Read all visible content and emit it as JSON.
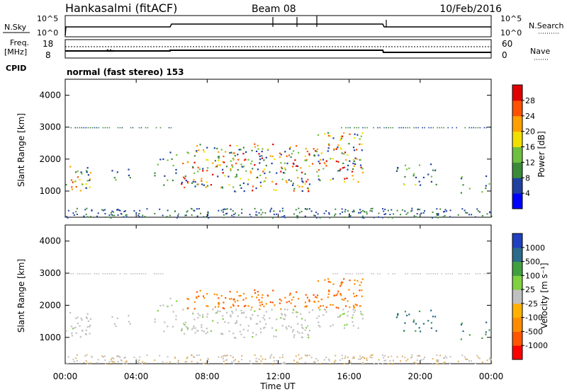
{
  "header": {
    "station": "Hankasalmi (fitACF)",
    "beam": "Beam 08",
    "date": "10/Feb/2016"
  },
  "noise_panel": {
    "left_label": "N.Sky",
    "right_label": "N.Search",
    "left_ticks": [
      "10^5",
      "10^0"
    ],
    "right_ticks": [
      "10^5",
      "10^0"
    ]
  },
  "freq_panel": {
    "left_label_line1": "Freq.",
    "left_label_line2": "[MHz]",
    "right_label": "Nave",
    "left_ticks": [
      "18",
      "8"
    ],
    "right_ticks": [
      "60",
      "0"
    ]
  },
  "cpid": {
    "label": "CPID",
    "text": "normal (fast stereo) 153"
  },
  "power_panel": {
    "ylabel": "Slant Range [km]",
    "yticks": [
      "4000",
      "3000",
      "2000",
      "1000"
    ],
    "colorbar_label": "Power [dB]",
    "colorbar_ticks": [
      "28",
      "24",
      "20",
      "16",
      "12",
      "8",
      "4"
    ],
    "colors": [
      "#0000ff",
      "#2040a0",
      "#3a8a3a",
      "#70c040",
      "#f0e000",
      "#ffa000",
      "#ff5000",
      "#e00000"
    ]
  },
  "velocity_panel": {
    "ylabel": "Slant Range [km]",
    "yticks": [
      "4000",
      "3000",
      "2000",
      "1000"
    ],
    "colorbar_label": "Velocity [m s⁻¹]",
    "colorbar_ticks": [
      "1000",
      "500",
      "100",
      "25",
      "-25",
      "-100",
      "-500",
      "-1000"
    ],
    "colors": [
      "#ff0000",
      "#ff5500",
      "#ff8c00",
      "#ffb000",
      "#c0c0c0",
      "#80d040",
      "#40a040",
      "#2a6a8a",
      "#2040c0"
    ]
  },
  "x_axis": {
    "label": "Time UT",
    "ticks": [
      "00:00",
      "04:00",
      "08:00",
      "12:00",
      "16:00",
      "20:00",
      "00:00"
    ]
  },
  "chart_data": {
    "type": "heatmap",
    "x_range_hours": [
      0,
      24
    ],
    "y_range_km": [
      180,
      4500
    ],
    "power_regions": [
      {
        "t0": 0.0,
        "t1": 1.4,
        "r0": 950,
        "r1": 1900,
        "level": "strong"
      },
      {
        "t0": 2.5,
        "t1": 3.8,
        "r0": 1100,
        "r1": 1700,
        "level": "weak"
      },
      {
        "t0": 5.0,
        "t1": 6.5,
        "r0": 1200,
        "r1": 2400,
        "level": "weak"
      },
      {
        "t0": 6.5,
        "t1": 9.5,
        "r0": 1100,
        "r1": 2500,
        "level": "strong"
      },
      {
        "t0": 9.5,
        "t1": 14.0,
        "r0": 1000,
        "r1": 2500,
        "level": "strong"
      },
      {
        "t0": 14.0,
        "t1": 16.8,
        "r0": 1300,
        "r1": 2900,
        "level": "strong"
      },
      {
        "t0": 18.6,
        "t1": 21.0,
        "r0": 1200,
        "r1": 1900,
        "level": "medium"
      },
      {
        "t0": 22.0,
        "t1": 24.0,
        "r0": 950,
        "r1": 1500,
        "level": "weak"
      }
    ]
  }
}
